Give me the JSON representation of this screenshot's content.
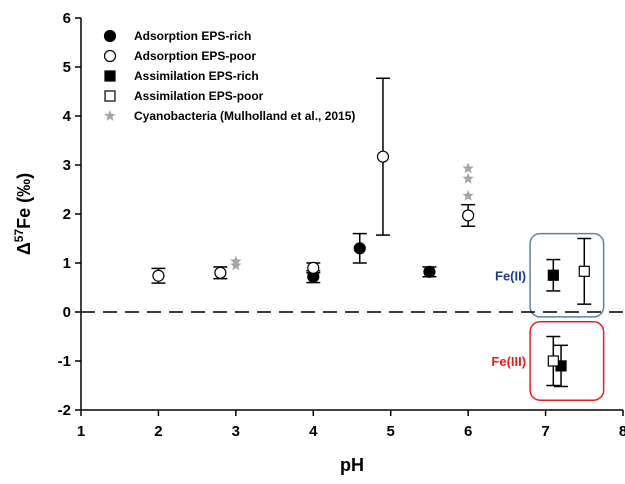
{
  "chart_data": {
    "type": "scatter",
    "xlabel": "pH",
    "ylabel": "Δ57Fe (‰)",
    "xlim": [
      1,
      8
    ],
    "ylim": [
      -2,
      6
    ],
    "xticks": [
      "1",
      "2",
      "3",
      "4",
      "5",
      "6",
      "7",
      "8"
    ],
    "yticks": [
      "-2",
      "-1",
      "0",
      "1",
      "2",
      "3",
      "4",
      "5",
      "6"
    ],
    "legend_position": "top-left",
    "reference_line": {
      "y": 0,
      "style": "dashed"
    },
    "series": [
      {
        "name": "Adsorption EPS-rich",
        "marker": "filled-circle",
        "color": "#000000",
        "points": [
          {
            "x": 4.0,
            "y": 0.72,
            "err": 0.12
          },
          {
            "x": 4.6,
            "y": 1.3,
            "err": 0.3
          },
          {
            "x": 5.5,
            "y": 0.82,
            "err": 0.1
          }
        ]
      },
      {
        "name": "Adsorption EPS-poor",
        "marker": "open-circle",
        "color": "#000000",
        "points": [
          {
            "x": 2.0,
            "y": 0.74,
            "err": 0.15
          },
          {
            "x": 2.8,
            "y": 0.8,
            "err": 0.12
          },
          {
            "x": 4.0,
            "y": 0.9,
            "err": 0.1
          },
          {
            "x": 4.9,
            "y": 3.17,
            "err": 1.6
          },
          {
            "x": 6.0,
            "y": 1.97,
            "err": 0.22
          }
        ]
      },
      {
        "name": "Assimilation EPS-rich",
        "marker": "filled-square",
        "color": "#000000",
        "points": [
          {
            "x": 7.1,
            "y": 0.75,
            "err": 0.32
          },
          {
            "x": 7.2,
            "y": -1.1,
            "err": 0.42
          }
        ]
      },
      {
        "name": "Assimilation EPS-poor",
        "marker": "open-square",
        "color": "#000000",
        "points": [
          {
            "x": 7.5,
            "y": 0.83,
            "err": 0.67
          },
          {
            "x": 7.1,
            "y": -1.0,
            "err": 0.5
          }
        ]
      },
      {
        "name": "Cyanobacteria (Mulholland et al., 2015)",
        "marker": "star",
        "color": "#a6a6a6",
        "points": [
          {
            "x": 3.0,
            "y": 0.95
          },
          {
            "x": 3.0,
            "y": 1.03
          },
          {
            "x": 6.0,
            "y": 2.37
          },
          {
            "x": 6.0,
            "y": 2.72
          },
          {
            "x": 6.0,
            "y": 2.93
          }
        ]
      }
    ],
    "annotations": [
      {
        "text": "Fe(II)",
        "color": "#1f3d8a",
        "box_color": "#5b84a8",
        "box_x": [
          6.8,
          7.75
        ],
        "box_y": [
          -0.1,
          1.6
        ]
      },
      {
        "text": "Fe(III)",
        "color": "#e8201a",
        "box_color": "#e8201a",
        "box_x": [
          6.8,
          7.75
        ],
        "box_y": [
          -1.8,
          -0.2
        ]
      }
    ]
  }
}
